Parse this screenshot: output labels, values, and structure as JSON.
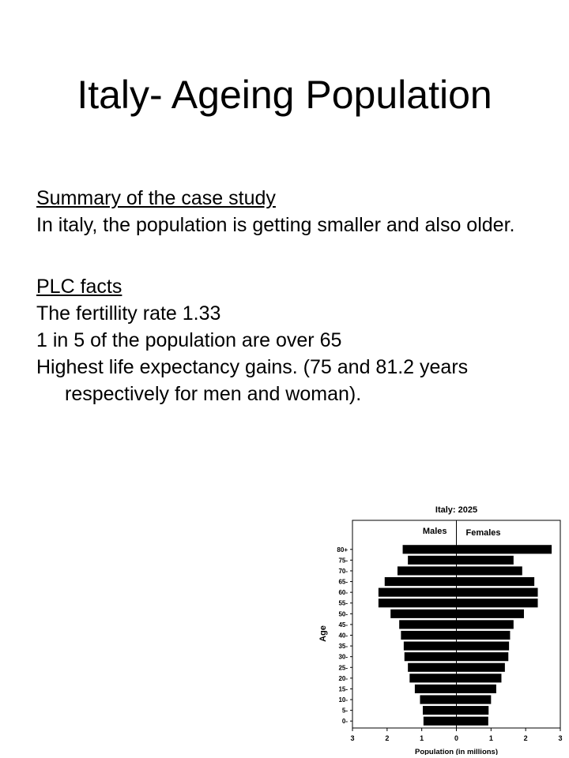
{
  "slide": {
    "title": "Italy- Ageing Population",
    "summary_heading": "Summary of the case study",
    "summary_text": "In italy, the population is getting smaller and also older.",
    "facts_heading": "PLC facts",
    "facts": [
      "The fertillity rate 1.33",
      "1 in 5 of the population are over 65",
      "Highest life expectancy gains. (75 and 81.2 years respectively for men and woman)."
    ]
  },
  "chart_data": {
    "type": "bar",
    "title": "Italy: 2025",
    "xlabel": "Population (in millions)",
    "ylabel": "Age",
    "xlim": [
      -3,
      3
    ],
    "x_tick_labels": [
      "3",
      "2",
      "1",
      "0",
      "1",
      "2",
      "3"
    ],
    "categories": [
      "0-",
      "5-",
      "10-",
      "15-",
      "20-",
      "25-",
      "30-",
      "35-",
      "40-",
      "45-",
      "50-",
      "55-",
      "60-",
      "65-",
      "70-",
      "75-",
      "80+"
    ],
    "series": [
      {
        "name": "Males",
        "values": [
          0.95,
          0.97,
          1.05,
          1.2,
          1.35,
          1.4,
          1.5,
          1.52,
          1.6,
          1.65,
          1.9,
          2.25,
          2.25,
          2.07,
          1.7,
          1.4,
          1.55
        ]
      },
      {
        "name": "Females",
        "values": [
          0.92,
          0.93,
          1.0,
          1.15,
          1.3,
          1.4,
          1.5,
          1.52,
          1.55,
          1.65,
          1.95,
          2.35,
          2.35,
          2.25,
          1.9,
          1.65,
          2.75
        ]
      }
    ],
    "colors": {
      "bar": "#000000",
      "frame": "#000000"
    }
  }
}
